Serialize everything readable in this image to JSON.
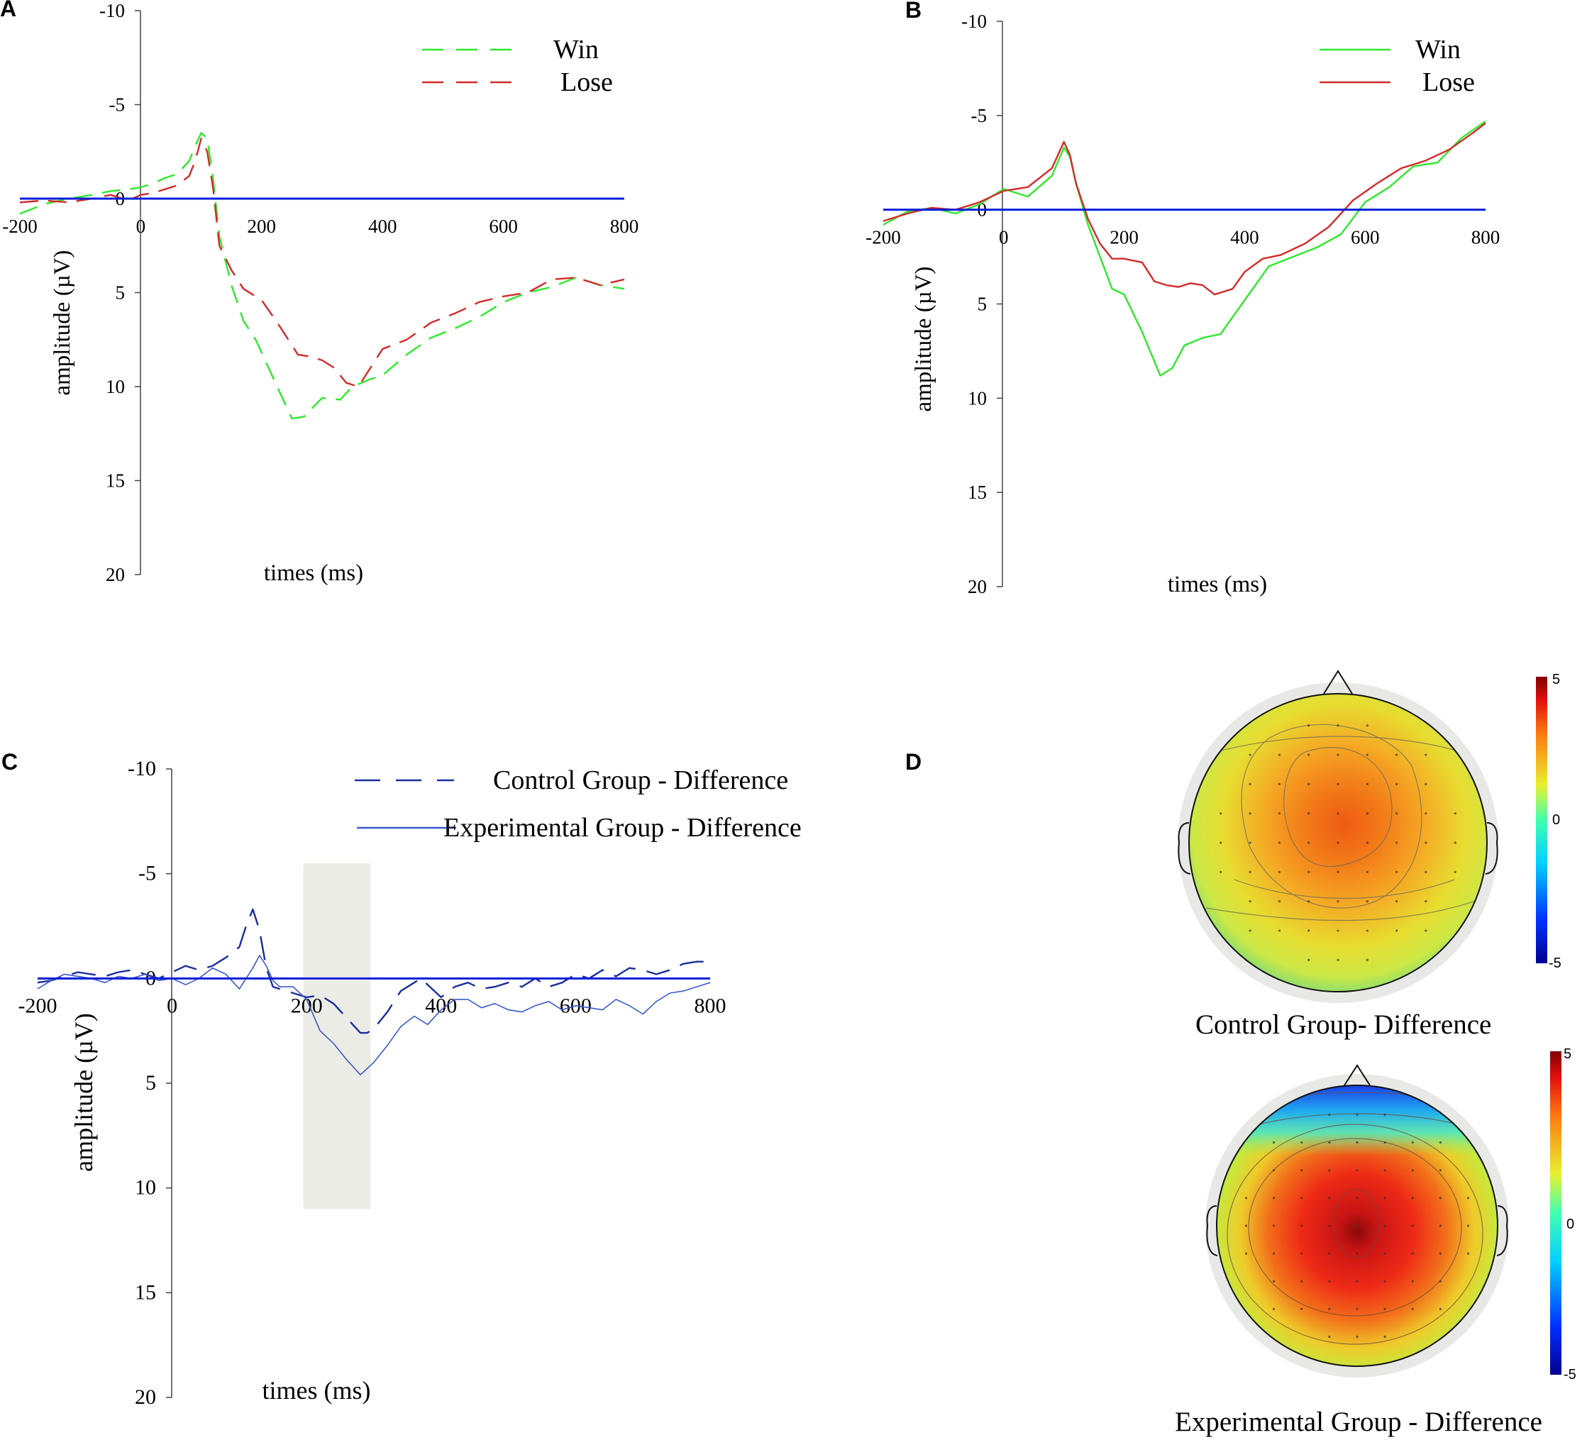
{
  "chart_data": [
    {
      "id": "A",
      "type": "line",
      "panel_label": "A",
      "xlabel": "times (ms)",
      "ylabel": "amplitude (µV)",
      "xlim": [
        -200,
        800
      ],
      "ylim": [
        -10,
        20
      ],
      "y_inverted": true,
      "xticks": [
        "-200",
        "0",
        "200",
        "400",
        "600",
        "800"
      ],
      "yticks": [
        "-10",
        "-5",
        "0",
        "5",
        "10",
        "15",
        "20"
      ],
      "baseline_color": "#0a1fd8",
      "series": [
        {
          "name": "Win",
          "color": "#2ee82e",
          "dash": true,
          "x": [
            -200,
            -160,
            -120,
            -80,
            -50,
            -20,
            0,
            20,
            40,
            60,
            80,
            90,
            100,
            110,
            120,
            130,
            150,
            170,
            190,
            220,
            250,
            270,
            300,
            330,
            350,
            380,
            400,
            440,
            480,
            520,
            560,
            600,
            640,
            680,
            720,
            760,
            800
          ],
          "values": [
            0.8,
            0.3,
            0,
            -0.2,
            -0.4,
            -0.5,
            -0.6,
            -0.8,
            -1.1,
            -1.3,
            -2,
            -2.8,
            -3.5,
            -3.2,
            -1,
            2,
            4.6,
            6.5,
            7.5,
            9.6,
            11.7,
            11.6,
            10.6,
            10.7,
            10,
            9.6,
            9.4,
            8.3,
            7.4,
            6.9,
            6.3,
            5.5,
            5,
            4.7,
            4.2,
            4.6,
            4.8
          ]
        },
        {
          "name": "Lose",
          "color": "#d42a2a",
          "dash": true,
          "x": [
            -200,
            -160,
            -120,
            -80,
            -50,
            -20,
            0,
            20,
            40,
            60,
            80,
            90,
            100,
            110,
            120,
            130,
            150,
            170,
            200,
            230,
            260,
            280,
            300,
            320,
            340,
            360,
            380,
            400,
            440,
            480,
            520,
            560,
            600,
            640,
            680,
            720,
            760,
            800
          ],
          "values": [
            0.2,
            0.1,
            0.2,
            0,
            -0.2,
            0.1,
            -0.2,
            -0.3,
            -0.5,
            -0.7,
            -1.2,
            -2,
            -3.2,
            -2.5,
            -0.5,
            2.5,
            3.8,
            4.8,
            5.4,
            6.8,
            8.3,
            8.4,
            8.6,
            9,
            9.8,
            10,
            9,
            8,
            7.5,
            6.6,
            6.1,
            5.5,
            5.2,
            5,
            4.3,
            4.2,
            4.6,
            4.3
          ]
        }
      ]
    },
    {
      "id": "B",
      "type": "line",
      "panel_label": "B",
      "xlabel": "times (ms)",
      "ylabel": "amplitude (µV)",
      "xlim": [
        -200,
        800
      ],
      "ylim": [
        -10,
        20
      ],
      "y_inverted": true,
      "xticks": [
        "-200",
        "0",
        "200",
        "400",
        "600",
        "800"
      ],
      "yticks": [
        "-10",
        "-5",
        "0",
        "5",
        "10",
        "15",
        "20"
      ],
      "baseline_color": "#0a1fd8",
      "series": [
        {
          "name": "Win",
          "color": "#2ee82e",
          "dash": false,
          "x": [
            -200,
            -160,
            -120,
            -80,
            -40,
            0,
            40,
            80,
            100,
            110,
            120,
            140,
            160,
            180,
            200,
            230,
            260,
            280,
            300,
            330,
            360,
            380,
            400,
            440,
            480,
            520,
            560,
            600,
            640,
            680,
            720,
            760,
            800
          ],
          "values": [
            0.8,
            0.1,
            -0.1,
            0.2,
            -0.3,
            -1.1,
            -0.7,
            -1.8,
            -3.3,
            -2.8,
            -1.4,
            0.8,
            2.5,
            4.2,
            4.5,
            6.5,
            8.8,
            8.4,
            7.2,
            6.8,
            6.6,
            5.7,
            4.8,
            3,
            2.5,
            2,
            1.3,
            -0.4,
            -1.2,
            -2.3,
            -2.5,
            -3.8,
            -4.7
          ]
        },
        {
          "name": "Lose",
          "color": "#d42a2a",
          "dash": false,
          "x": [
            -200,
            -160,
            -120,
            -80,
            -40,
            0,
            40,
            80,
            100,
            110,
            120,
            140,
            160,
            180,
            200,
            230,
            250,
            270,
            290,
            310,
            330,
            350,
            380,
            400,
            430,
            460,
            500,
            540,
            580,
            620,
            660,
            700,
            740,
            780,
            800
          ],
          "values": [
            0.6,
            0.2,
            -0.1,
            0,
            -0.4,
            -1,
            -1.2,
            -2.2,
            -3.6,
            -2.9,
            -1.4,
            0.5,
            1.8,
            2.6,
            2.6,
            2.8,
            3.8,
            4,
            4.1,
            3.9,
            4,
            4.5,
            4.2,
            3.3,
            2.6,
            2.4,
            1.8,
            0.9,
            -0.5,
            -1.4,
            -2.2,
            -2.6,
            -3.2,
            -4.1,
            -4.6
          ]
        }
      ]
    },
    {
      "id": "C",
      "type": "line",
      "panel_label": "C",
      "xlabel": "times (ms)",
      "ylabel": "amplitude (µV)",
      "xlim": [
        -200,
        800
      ],
      "ylim": [
        -10,
        20
      ],
      "y_inverted": true,
      "xticks": [
        "-200",
        "0",
        "200",
        "400",
        "600",
        "800"
      ],
      "yticks": [
        "-10",
        "-5",
        "0",
        "5",
        "10",
        "15",
        "20"
      ],
      "baseline_color": "#0a1fd8",
      "highlight_window": {
        "x": [
          195,
          295
        ],
        "y": [
          -5.5,
          11
        ]
      },
      "series": [
        {
          "name": "Control Group - Difference",
          "color": "#1a2f9a",
          "dash": true,
          "x": [
            -200,
            -180,
            -160,
            -140,
            -120,
            -100,
            -80,
            -60,
            -40,
            -20,
            0,
            20,
            40,
            60,
            80,
            100,
            110,
            120,
            130,
            140,
            150,
            160,
            180,
            200,
            220,
            240,
            260,
            280,
            290,
            300,
            320,
            340,
            360,
            370,
            380,
            400,
            420,
            440,
            460,
            480,
            500,
            520,
            540,
            560,
            580,
            600,
            620,
            640,
            660,
            680,
            700,
            720,
            740,
            760,
            780,
            800
          ],
          "values": [
            0.2,
            0.1,
            -0.1,
            -0.3,
            -0.2,
            -0.1,
            -0.3,
            -0.4,
            -0.2,
            0,
            -0.3,
            -0.6,
            -0.4,
            -0.6,
            -1,
            -1.5,
            -2.5,
            -3.3,
            -2.3,
            -0.5,
            0.4,
            0.5,
            0.7,
            0.9,
            0.8,
            1.2,
            1.9,
            2.6,
            2.6,
            2.4,
            1.6,
            0.6,
            0.2,
            0,
            0.3,
            0.9,
            0.4,
            0.2,
            0.5,
            0.4,
            0.2,
            0.4,
            0,
            0.4,
            0.2,
            -0.2,
            0,
            -0.4,
            -0.1,
            -0.5,
            -0.4,
            -0.2,
            -0.4,
            -0.7,
            -0.8,
            -0.8
          ]
        },
        {
          "name": "Experimental Group - Difference",
          "color": "#3a5acb",
          "dash": false,
          "x": [
            -200,
            -180,
            -160,
            -140,
            -120,
            -100,
            -80,
            -60,
            -40,
            -20,
            0,
            20,
            40,
            60,
            80,
            100,
            110,
            120,
            130,
            140,
            150,
            160,
            180,
            200,
            220,
            240,
            260,
            280,
            300,
            320,
            340,
            360,
            380,
            400,
            420,
            440,
            460,
            480,
            500,
            520,
            540,
            560,
            580,
            600,
            620,
            640,
            660,
            680,
            700,
            720,
            740,
            760,
            780,
            800
          ],
          "values": [
            0.5,
            0.1,
            -0.2,
            -0.1,
            0,
            0.2,
            -0.1,
            0,
            -0.2,
            0.1,
            0,
            0.3,
            0,
            -0.5,
            -0.2,
            0.5,
            0,
            -0.5,
            -1.1,
            -0.6,
            0.1,
            0.4,
            0.4,
            1,
            2.5,
            3.1,
            3.9,
            4.6,
            4,
            3.2,
            2.3,
            1.8,
            2.2,
            1.5,
            1,
            1,
            1.4,
            1.2,
            1.5,
            1.6,
            1.3,
            1.1,
            1.5,
            1.3,
            1.4,
            1.5,
            1.0,
            1.3,
            1.7,
            1.1,
            0.7,
            0.6,
            0.4,
            0.2
          ]
        }
      ]
    },
    {
      "id": "D",
      "type": "heatmap",
      "panel_label": "D",
      "colorbar_ticks": [
        "5",
        "0",
        "-5"
      ],
      "colorbar_range": [
        -5,
        5
      ],
      "maps": [
        {
          "caption": "Control Group- Difference",
          "peak_value": 2.8
        },
        {
          "caption": "Experimental  Group - Difference",
          "peak_value": 4.6
        }
      ]
    }
  ]
}
